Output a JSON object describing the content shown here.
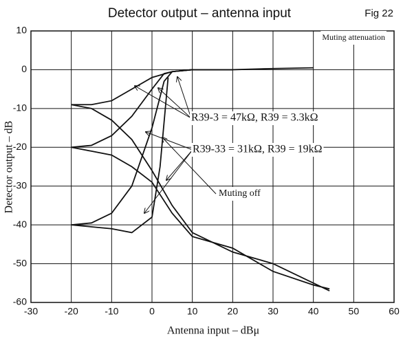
{
  "chart_data": {
    "type": "line",
    "title": "Detector output – antenna input",
    "figure_label": "Fig 22",
    "x_label": "Antenna input – dBμ",
    "y_label": "Detector output – dB",
    "annotations": [
      "Muting attenuation",
      "R39-3 = 47kΩ, R39 = 3.3kΩ",
      "R39-33 = 31kΩ, R39 = 19kΩ",
      "Muting off"
    ],
    "color": "#111111",
    "grid": true,
    "xlim": [
      -30,
      60
    ],
    "xticks": [
      -30,
      -20,
      -10,
      0,
      10,
      20,
      30,
      40,
      50,
      60
    ],
    "ylim": [
      -60,
      10
    ],
    "yticks": [
      -60,
      -50,
      -40,
      -30,
      -20,
      -10,
      0,
      10
    ],
    "series": [
      {
        "x": [
          -20,
          -15,
          -10,
          -5,
          0,
          5,
          10,
          20,
          30,
          40
        ],
        "values": [
          -9,
          -9,
          -8,
          -5,
          -2,
          -0.5,
          0,
          0,
          0.3,
          0.5
        ]
      },
      {
        "x": [
          -20,
          -15,
          -10,
          -5,
          0,
          3,
          5,
          10,
          20
        ],
        "values": [
          -20,
          -19.5,
          -17,
          -12,
          -5,
          -1,
          -0.5,
          0,
          0
        ]
      },
      {
        "x": [
          -20,
          -15,
          -10,
          -5,
          0,
          3,
          5,
          10
        ],
        "values": [
          -40,
          -39.5,
          -37,
          -30,
          -15,
          -3,
          -0.5,
          0
        ]
      },
      {
        "x": [
          -20,
          -15,
          -10,
          -5,
          0,
          5,
          10,
          20,
          30,
          40,
          44
        ],
        "values": [
          -9,
          -10,
          -13,
          -18,
          -26,
          -35,
          -42,
          -47,
          -50,
          -55,
          -57
        ]
      },
      {
        "x": [
          -20,
          -15,
          -10,
          -5,
          0,
          5,
          10,
          20,
          30,
          40,
          44
        ],
        "values": [
          -20,
          -21,
          -22,
          -25,
          -29,
          -37,
          -43,
          -46,
          -52,
          -55.5,
          -56.5
        ]
      },
      {
        "x": [
          -20,
          -15,
          -10,
          -5,
          0,
          2,
          4
        ],
        "values": [
          -40,
          -40.5,
          -41,
          -42,
          -38,
          -25,
          -2
        ]
      }
    ]
  }
}
